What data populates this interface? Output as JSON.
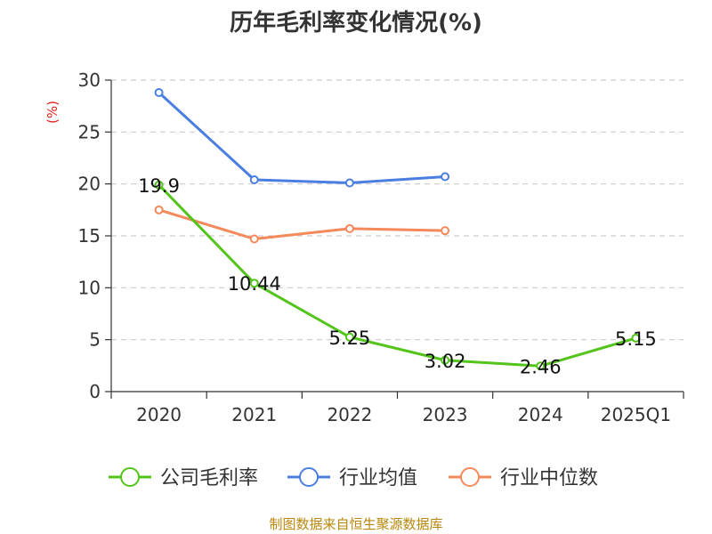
{
  "chart_data": {
    "type": "line",
    "title": "历年毛利率变化情况(%)",
    "ylabel": "(%)",
    "xlabel": "",
    "categories": [
      "2020",
      "2021",
      "2022",
      "2023",
      "2024",
      "2025Q1"
    ],
    "ylim": [
      0,
      30
    ],
    "yticks": [
      0,
      5,
      10,
      15,
      20,
      25,
      30
    ],
    "grid": true,
    "legend_position": "bottom",
    "series": [
      {
        "name": "公司毛利率",
        "color": "#52c41a",
        "values": [
          19.9,
          10.44,
          5.25,
          3.02,
          2.46,
          5.15
        ],
        "labels": [
          "19.9",
          "10.44",
          "5.25",
          "3.02",
          "2.46",
          "5.15"
        ]
      },
      {
        "name": "行业均值",
        "color": "#4a7fe0",
        "values": [
          28.8,
          20.4,
          20.1,
          20.7,
          null,
          null
        ]
      },
      {
        "name": "行业中位数",
        "color": "#f4895b",
        "values": [
          17.5,
          14.7,
          15.7,
          15.5,
          null,
          null
        ]
      }
    ],
    "source": "制图数据来自恒生聚源数据库"
  }
}
